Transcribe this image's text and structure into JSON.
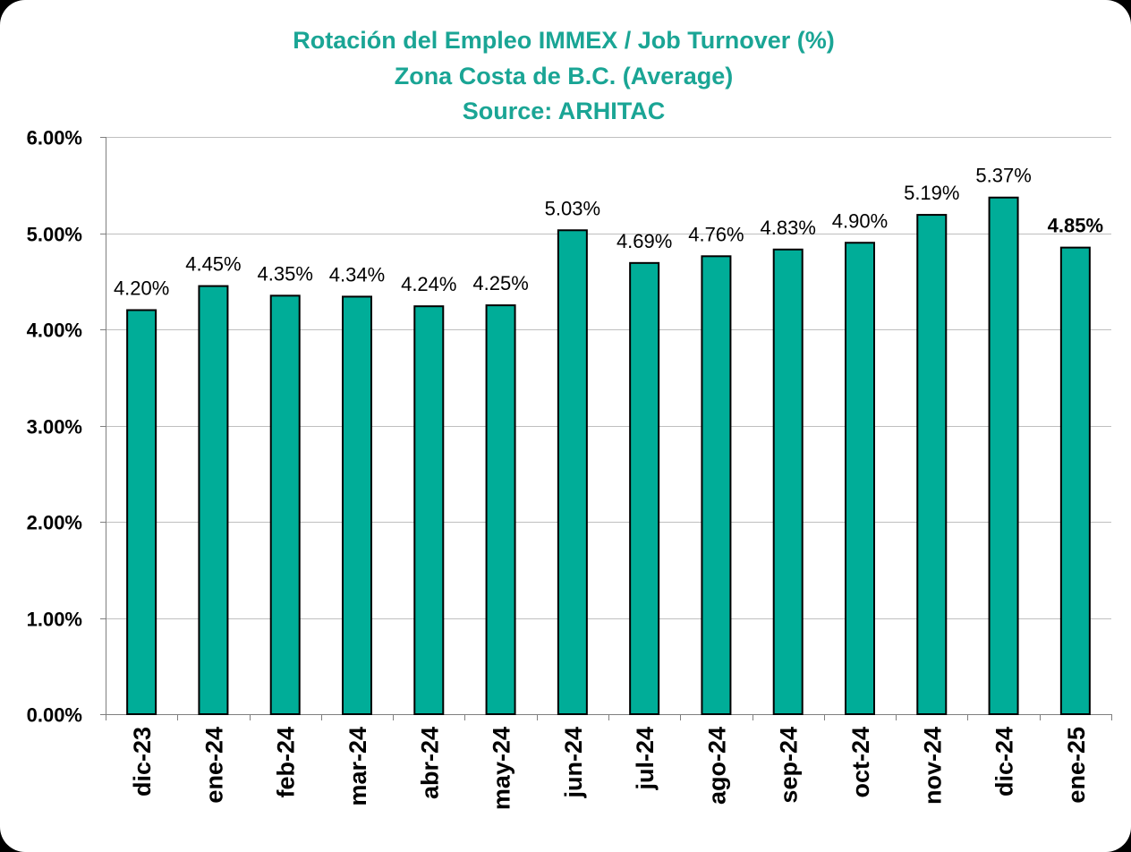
{
  "chart_data": {
    "type": "bar",
    "title": [
      "Rotación del Empleo IMMEX / Job Turnover (%)",
      "Zona Costa de B.C. (Average)",
      "Source: ARHITAC"
    ],
    "categories": [
      "dic-23",
      "ene-24",
      "feb-24",
      "mar-24",
      "abr-24",
      "may-24",
      "jun-24",
      "jul-24",
      "ago-24",
      "sep-24",
      "oct-24",
      "nov-24",
      "dic-24",
      "ene-25"
    ],
    "values": [
      4.2,
      4.45,
      4.35,
      4.34,
      4.24,
      4.25,
      5.03,
      4.69,
      4.76,
      4.83,
      4.9,
      5.19,
      5.37,
      4.85
    ],
    "data_labels": [
      "4.20%",
      "4.45%",
      "4.35%",
      "4.34%",
      "4.24%",
      "4.25%",
      "5.03%",
      "4.69%",
      "4.76%",
      "4.83%",
      "4.90%",
      "5.19%",
      "5.37%",
      "4.85%"
    ],
    "highlight_last_label": true,
    "ylim": [
      0,
      6
    ],
    "yticks": [
      0,
      1,
      2,
      3,
      4,
      5,
      6
    ],
    "ytick_labels": [
      "0.00%",
      "1.00%",
      "2.00%",
      "3.00%",
      "4.00%",
      "5.00%",
      "6.00%"
    ],
    "xlabel": "",
    "ylabel": "",
    "grid": true,
    "colors": {
      "bar": "#00ad98",
      "bar_outline": "#000000",
      "title": "#1aa595",
      "grid": "#bfbfbf",
      "axis": "#7f7f7f"
    }
  }
}
